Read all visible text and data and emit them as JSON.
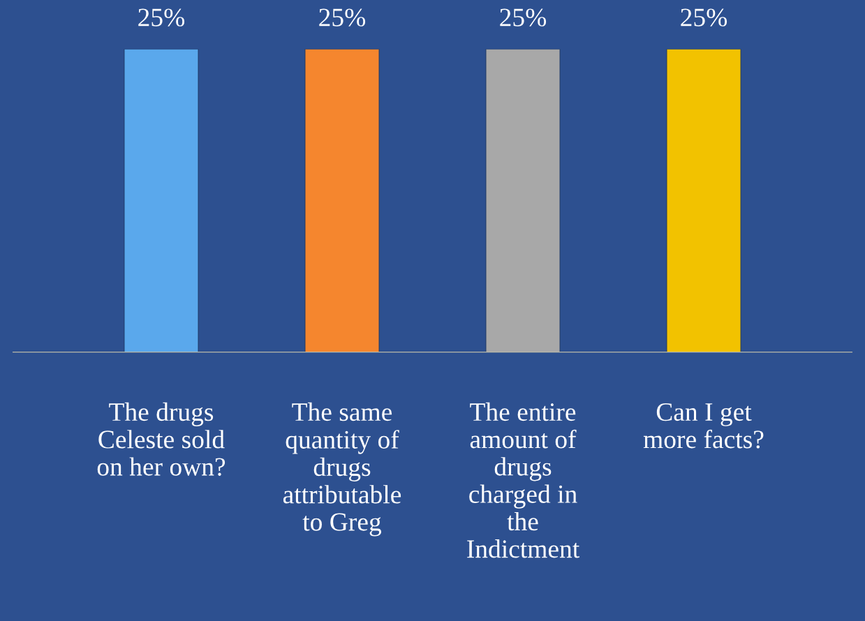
{
  "chart_data": {
    "type": "bar",
    "categories": [
      "The drugs\nCeleste sold\non her own?",
      "The same\nquantity of\ndrugs\nattributable\nto Greg",
      "The entire\namount of\ndrugs\ncharged in\nthe\nIndictment",
      "Can I get\nmore facts?"
    ],
    "values": [
      25,
      25,
      25,
      25
    ],
    "colors": [
      "#5aa8ec",
      "#f5862e",
      "#a8a8a8",
      "#f2c200"
    ],
    "value_labels": [
      "25%",
      "25%",
      "25%",
      "25%"
    ],
    "grid": false,
    "legend": false
  }
}
